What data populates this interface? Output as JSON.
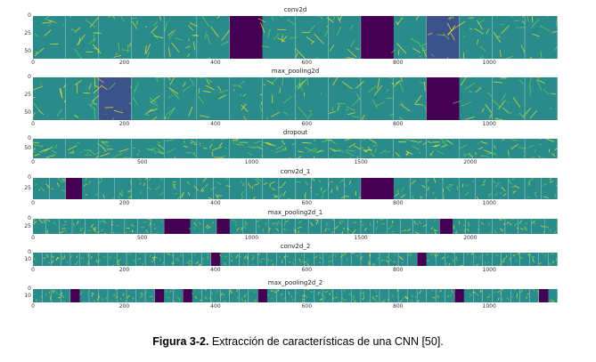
{
  "figure": {
    "panels": [
      {
        "title": "conv2d",
        "yticks": [
          "0",
          "25",
          "50"
        ],
        "xticks": [
          {
            "v": 0,
            "t": "0"
          },
          {
            "v": 200,
            "t": "200"
          },
          {
            "v": 400,
            "t": "400"
          },
          {
            "v": 600,
            "t": "600"
          },
          {
            "v": 800,
            "t": "800"
          },
          {
            "v": 1000,
            "t": "1000"
          }
        ],
        "xmax": 1150,
        "tiles": 16
      },
      {
        "title": "max_pooling2d",
        "yticks": [
          "0",
          "25",
          "50"
        ],
        "xticks": [
          {
            "v": 0,
            "t": "0"
          },
          {
            "v": 200,
            "t": "200"
          },
          {
            "v": 400,
            "t": "400"
          },
          {
            "v": 600,
            "t": "600"
          },
          {
            "v": 800,
            "t": "800"
          },
          {
            "v": 1000,
            "t": "1000"
          }
        ],
        "xmax": 1150,
        "tiles": 16
      },
      {
        "title": "dropout",
        "yticks": [
          "0",
          "50"
        ],
        "xticks": [
          {
            "v": 0,
            "t": "0"
          },
          {
            "v": 500,
            "t": "500"
          },
          {
            "v": 1000,
            "t": "1000"
          },
          {
            "v": 1500,
            "t": "1500"
          },
          {
            "v": 2000,
            "t": "2000"
          }
        ],
        "xmax": 2400,
        "tiles": 16
      },
      {
        "title": "conv2d_1",
        "yticks": [
          "0",
          "25"
        ],
        "xticks": [
          {
            "v": 0,
            "t": "0"
          },
          {
            "v": 200,
            "t": "200"
          },
          {
            "v": 400,
            "t": "400"
          },
          {
            "v": 600,
            "t": "600"
          },
          {
            "v": 800,
            "t": "800"
          },
          {
            "v": 1000,
            "t": "1000"
          }
        ],
        "xmax": 1150,
        "tiles": 32
      },
      {
        "title": "max_pooling2d_1",
        "yticks": [
          "0",
          "25"
        ],
        "xticks": [
          {
            "v": 0,
            "t": "0"
          },
          {
            "v": 500,
            "t": "500"
          },
          {
            "v": 1000,
            "t": "1000"
          },
          {
            "v": 1500,
            "t": "1500"
          },
          {
            "v": 2000,
            "t": "2000"
          }
        ],
        "xmax": 2400,
        "tiles": 40
      },
      {
        "title": "conv2d_2",
        "yticks": [
          "0",
          "10"
        ],
        "xticks": [
          {
            "v": 0,
            "t": "0"
          },
          {
            "v": 200,
            "t": "200"
          },
          {
            "v": 400,
            "t": "400"
          },
          {
            "v": 600,
            "t": "600"
          },
          {
            "v": 800,
            "t": "800"
          },
          {
            "v": 1000,
            "t": "1000"
          }
        ],
        "xmax": 1150,
        "tiles": 56
      },
      {
        "title": "max_pooling2d_2",
        "yticks": [
          "0",
          "10"
        ],
        "xticks": [
          {
            "v": 0,
            "t": "0"
          },
          {
            "v": 200,
            "t": "200"
          },
          {
            "v": 400,
            "t": "400"
          },
          {
            "v": 600,
            "t": "600"
          },
          {
            "v": 800,
            "t": "800"
          },
          {
            "v": 1000,
            "t": "1000"
          }
        ],
        "xmax": 1150,
        "tiles": 56
      }
    ],
    "colors": {
      "dark": "#440154",
      "mid": "#2a8c8a",
      "teal": "#21918c",
      "light": "#7ad151",
      "yellow": "#fde725"
    }
  },
  "caption": {
    "label": "Figura 3-2.",
    "text": " Extracción de características de una CNN [50]."
  }
}
